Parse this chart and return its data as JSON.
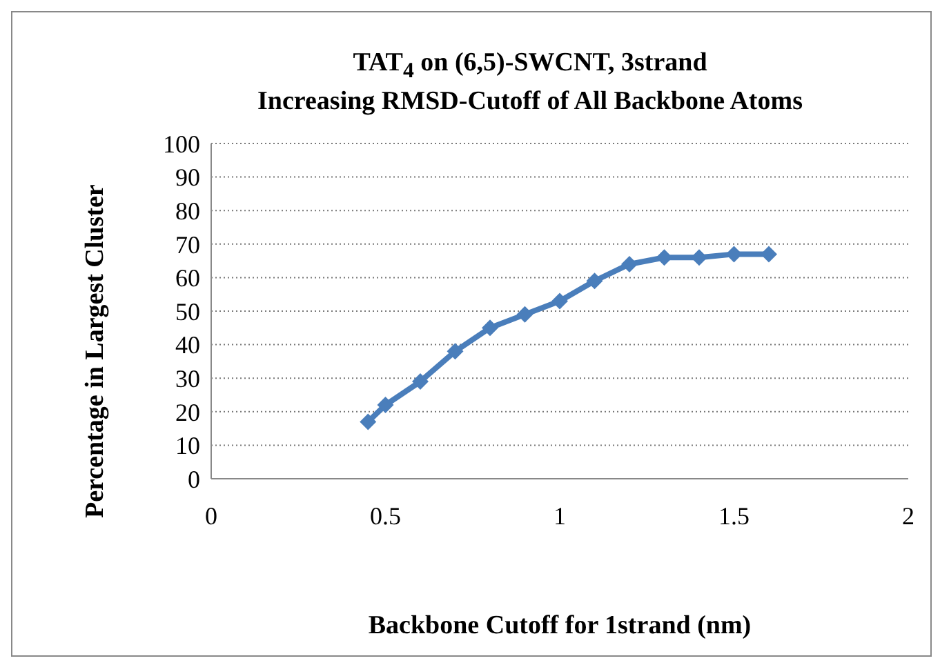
{
  "chart_data": {
    "type": "line",
    "title": "TAT$_{4}$ on (6,5)-SWCNT, 3strand",
    "subtitle": "Increasing RMSD-Cutoff of  All Backbone Atoms",
    "xlabel": "Backbone Cutoff for 1strand (nm)",
    "ylabel": "Percentage in Largest Cluster",
    "x": [
      0.45,
      0.5,
      0.6,
      0.7,
      0.8,
      0.9,
      1.0,
      1.1,
      1.2,
      1.3,
      1.4,
      1.5,
      1.6
    ],
    "series": [
      {
        "color": "#4a7ebb",
        "values": [
          17,
          22,
          29,
          38,
          45,
          49,
          53,
          59,
          64,
          66,
          66,
          67,
          67
        ]
      }
    ],
    "xlim": [
      0,
      2
    ],
    "xticks": [
      0,
      0.5,
      1,
      1.5,
      2
    ],
    "ylim": [
      0,
      100
    ],
    "yticks": [
      0,
      10,
      20,
      30,
      40,
      50,
      60,
      70,
      80,
      90,
      100
    ],
    "grid": "y",
    "legend": false,
    "marker": "diamond",
    "line_style": "solid"
  }
}
